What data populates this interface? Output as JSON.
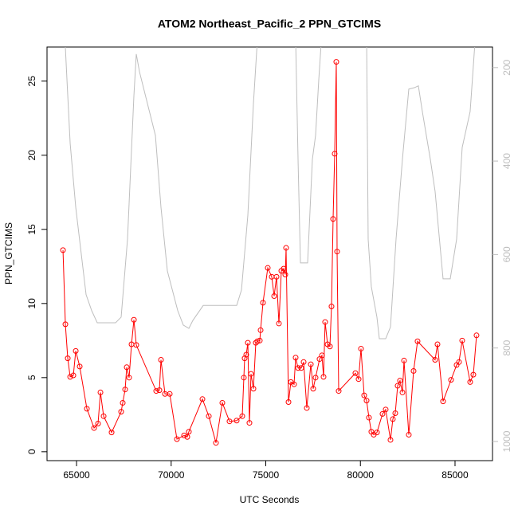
{
  "chart_data": {
    "type": "line",
    "title": "ATOM2 Northeast_Pacific_2 PPN_GTCIMS",
    "xlabel": "UTC Seconds",
    "ylabel": "PPN_GTCIMS",
    "xlim": [
      63440,
      86980
    ],
    "xticks": [
      65000,
      70000,
      75000,
      80000,
      85000
    ],
    "ylim": [
      -0.6,
      27.3
    ],
    "yticks": [
      0,
      5,
      10,
      15,
      20,
      25
    ],
    "y2lim": [
      1041,
      156
    ],
    "y2ticks": [
      200,
      400,
      600,
      800,
      1000
    ],
    "series": [
      {
        "color": "#ff0000",
        "markers": true,
        "x": [
          64284,
          64410,
          64536,
          64663,
          64831,
          64958,
          65168,
          65547,
          65926,
          66136,
          66263,
          66431,
          66852,
          67357,
          67441,
          67568,
          67652,
          67778,
          67905,
          68031,
          68157,
          69210,
          69378,
          69462,
          69673,
          69926,
          70305,
          70683,
          70852,
          70936,
          71652,
          71989,
          72367,
          72704,
          73083,
          73462,
          73757,
          73841,
          73883,
          73968,
          74052,
          74136,
          74220,
          74347,
          74473,
          74557,
          74684,
          74726,
          74852,
          75105,
          75315,
          75442,
          75568,
          75694,
          75821,
          75947,
          76031,
          76073,
          76200,
          76326,
          76494,
          76578,
          76705,
          76873,
          77000,
          77168,
          77379,
          77505,
          77631,
          77842,
          77968,
          78052,
          78136,
          78263,
          78389,
          78473,
          78557,
          78641,
          78726,
          78768,
          78852,
          79736,
          79905,
          80031,
          80199,
          80326,
          80452,
          80578,
          80705,
          80873,
          81168,
          81336,
          81589,
          81715,
          81842,
          81968,
          82094,
          82221,
          82305,
          82557,
          82810,
          83020,
          83947,
          84073,
          84368,
          84789,
          85084,
          85210,
          85378,
          85799,
          85968,
          86136
        ],
        "values": [
          13.6,
          8.6,
          6.3,
          5.05,
          5.15,
          6.8,
          5.75,
          2.9,
          1.6,
          1.9,
          4.0,
          2.4,
          1.3,
          2.7,
          3.3,
          4.2,
          5.7,
          5.0,
          7.25,
          8.9,
          7.2,
          4.1,
          4.15,
          6.2,
          3.9,
          3.9,
          0.85,
          1.1,
          1.0,
          1.35,
          3.55,
          2.4,
          0.6,
          3.3,
          2.05,
          2.1,
          2.4,
          5.0,
          6.3,
          6.55,
          7.35,
          1.95,
          5.25,
          4.25,
          7.35,
          7.45,
          7.5,
          8.2,
          10.05,
          12.4,
          11.8,
          10.5,
          11.8,
          8.65,
          12.2,
          12.35,
          11.95,
          13.75,
          3.35,
          4.7,
          4.55,
          6.35,
          5.65,
          5.65,
          6.05,
          2.95,
          5.9,
          4.25,
          5.0,
          6.25,
          6.5,
          5.05,
          8.75,
          7.25,
          7.1,
          9.8,
          15.7,
          20.1,
          26.3,
          13.5,
          4.1,
          5.3,
          4.9,
          6.95,
          3.8,
          3.45,
          2.3,
          1.35,
          1.15,
          1.3,
          2.55,
          2.85,
          0.8,
          2.2,
          2.6,
          4.45,
          4.8,
          4.0,
          6.15,
          1.15,
          5.45,
          7.45,
          6.2,
          7.25,
          3.4,
          4.85,
          5.85,
          6.05,
          7.5,
          4.7,
          5.2,
          7.85
        ]
      },
      {
        "color": "#bebebe",
        "axis": "y2",
        "markers": false,
        "x": [
          64368,
          64494,
          64663,
          64958,
          65505,
          65800,
          66094,
          67063,
          67357,
          67694,
          68031,
          68157,
          68326,
          68747,
          69168,
          69462,
          69799,
          70347,
          70641,
          70936,
          71147,
          71694,
          73462,
          73715,
          74052,
          74347,
          74557,
          76578,
          76705,
          76831,
          77210,
          77463,
          77631,
          77800,
          77968,
          80326,
          80410,
          80578,
          80873,
          81000,
          81336,
          81589,
          81884,
          82221,
          82557,
          82852,
          83063,
          83273,
          83694,
          83947,
          84368,
          84747,
          85084,
          85378,
          85799,
          86094
        ],
        "values": [
          123,
          226,
          362,
          499,
          686,
          720,
          746,
          746,
          734,
          567,
          260,
          171,
          209,
          277,
          345,
          499,
          635,
          720,
          751,
          758,
          741,
          709,
          709,
          676,
          516,
          277,
          140,
          140,
          396,
          618,
          618,
          396,
          345,
          226,
          123,
          123,
          567,
          669,
          734,
          780,
          780,
          755,
          567,
          396,
          246,
          243,
          239,
          294,
          396,
          465,
          652,
          652,
          567,
          371,
          294,
          123
        ]
      }
    ]
  }
}
